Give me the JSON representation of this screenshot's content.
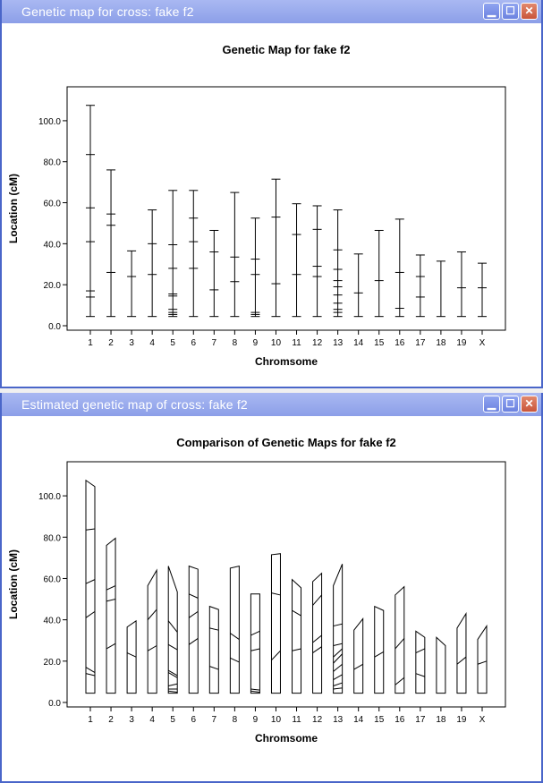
{
  "windows": [
    {
      "title": "Genetic map for cross: fake f2"
    },
    {
      "title": "Estimated genetic map of cross: fake f2"
    }
  ],
  "colors": {
    "titlebar": "#8c9fe8",
    "close": "#c9553a",
    "ink": "#000000"
  },
  "icons": [
    "minimize-icon",
    "maximize-icon",
    "close-icon"
  ],
  "chart_data": [
    {
      "type": "genetic_map",
      "title": "Genetic Map for fake f2",
      "xlabel": "Chromsome",
      "ylabel": "Location (cM)",
      "ylim": [
        0,
        110
      ],
      "yticks": [
        "0.0",
        "20.0",
        "40.0",
        "60.0",
        "80.0",
        "100.0"
      ],
      "categories": [
        "1",
        "2",
        "3",
        "4",
        "5",
        "6",
        "7",
        "8",
        "9",
        "10",
        "11",
        "12",
        "13",
        "14",
        "15",
        "16",
        "17",
        "18",
        "19",
        "X"
      ],
      "markers": [
        [
          4.5,
          14,
          17,
          41,
          57.5,
          83.5,
          107.5
        ],
        [
          4.5,
          26,
          49,
          54.5,
          76
        ],
        [
          4.5,
          24,
          36.5
        ],
        [
          4.5,
          25,
          40,
          56.5
        ],
        [
          4.5,
          5.5,
          6.5,
          8,
          14.5,
          15.5,
          28,
          39.5,
          66
        ],
        [
          4.5,
          28,
          41,
          52.5,
          66
        ],
        [
          4.5,
          17.5,
          36,
          46.5
        ],
        [
          4.5,
          21.5,
          33.5,
          65
        ],
        [
          4.5,
          5.5,
          6.5,
          25,
          32.5,
          52.5
        ],
        [
          4.5,
          20.5,
          53,
          71.5
        ],
        [
          4.5,
          25,
          44.5,
          59.5
        ],
        [
          4.5,
          24,
          29,
          47,
          58.5
        ],
        [
          4.5,
          6.5,
          8,
          11,
          15,
          19,
          22,
          27.5,
          37,
          56.5
        ],
        [
          4.5,
          16,
          35
        ],
        [
          4.5,
          22,
          46.5
        ],
        [
          4.5,
          8.5,
          26,
          52
        ],
        [
          4.5,
          14,
          24,
          34.5
        ],
        [
          4.5,
          31.5
        ],
        [
          4.5,
          18.5,
          36
        ],
        [
          4.5,
          18.5,
          30.5
        ]
      ]
    },
    {
      "type": "genetic_map_comparison",
      "title": "Comparison of Genetic Maps for fake f2",
      "xlabel": "Chromsome",
      "ylabel": "Location (cM)",
      "ylim": [
        0,
        110
      ],
      "yticks": [
        "0.0",
        "20.0",
        "40.0",
        "60.0",
        "80.0",
        "100.0"
      ],
      "categories": [
        "1",
        "2",
        "3",
        "4",
        "5",
        "6",
        "7",
        "8",
        "9",
        "10",
        "11",
        "12",
        "13",
        "14",
        "15",
        "16",
        "17",
        "18",
        "19",
        "X"
      ],
      "left_markers": [
        [
          4.5,
          14,
          17,
          41,
          57.5,
          83.5,
          107.5
        ],
        [
          4.5,
          26,
          49,
          54.5,
          76
        ],
        [
          4.5,
          24,
          36.5
        ],
        [
          4.5,
          25,
          40,
          56.5
        ],
        [
          4.5,
          5.5,
          6.5,
          8,
          14.5,
          15.5,
          28,
          39.5,
          66
        ],
        [
          4.5,
          28,
          41,
          52.5,
          66
        ],
        [
          4.5,
          17.5,
          36,
          46.5
        ],
        [
          4.5,
          21.5,
          33.5,
          65
        ],
        [
          4.5,
          5.5,
          6.5,
          25,
          32.5,
          52.5
        ],
        [
          4.5,
          20.5,
          53,
          71.5
        ],
        [
          4.5,
          25,
          44.5,
          59.5
        ],
        [
          4.5,
          24,
          29,
          47,
          58.5
        ],
        [
          4.5,
          6.5,
          8,
          11,
          15,
          19,
          22,
          27.5,
          37,
          56.5
        ],
        [
          4.5,
          16,
          35
        ],
        [
          4.5,
          22,
          46.5
        ],
        [
          4.5,
          8.5,
          26,
          52
        ],
        [
          4.5,
          14,
          24,
          34.5
        ],
        [
          4.5,
          31.5
        ],
        [
          4.5,
          18.5,
          36
        ],
        [
          4.5,
          18.5,
          30.5
        ]
      ],
      "right_markers": [
        [
          4.5,
          13,
          14.5,
          44,
          59.5,
          84,
          104.5
        ],
        [
          4.5,
          28.5,
          50,
          56.5,
          79.5
        ],
        [
          4.5,
          22,
          39.5
        ],
        [
          4.5,
          27.5,
          45,
          64
        ],
        [
          4.5,
          5,
          6.5,
          9,
          12,
          13,
          25.5,
          34,
          53.5
        ],
        [
          4.5,
          31,
          44,
          50.5,
          64.5
        ],
        [
          4.5,
          16,
          35,
          45
        ],
        [
          4.5,
          19.5,
          30.5,
          66
        ],
        [
          4.5,
          5,
          6,
          26,
          34.5,
          52.5
        ],
        [
          4.5,
          25,
          52,
          72
        ],
        [
          4.5,
          26,
          42,
          55.5
        ],
        [
          4.5,
          27,
          32.5,
          52,
          62.5
        ],
        [
          4.5,
          7,
          9.5,
          13.5,
          18.5,
          23.5,
          26,
          28.5,
          38,
          67
        ],
        [
          4.5,
          18.5,
          40.5
        ],
        [
          4.5,
          24.5,
          44.5
        ],
        [
          4.5,
          12,
          31,
          56
        ],
        [
          4.5,
          12.5,
          26,
          31.5
        ],
        [
          4.5,
          27.5
        ],
        [
          4.5,
          22,
          43
        ],
        [
          4.5,
          20,
          37
        ]
      ]
    }
  ]
}
